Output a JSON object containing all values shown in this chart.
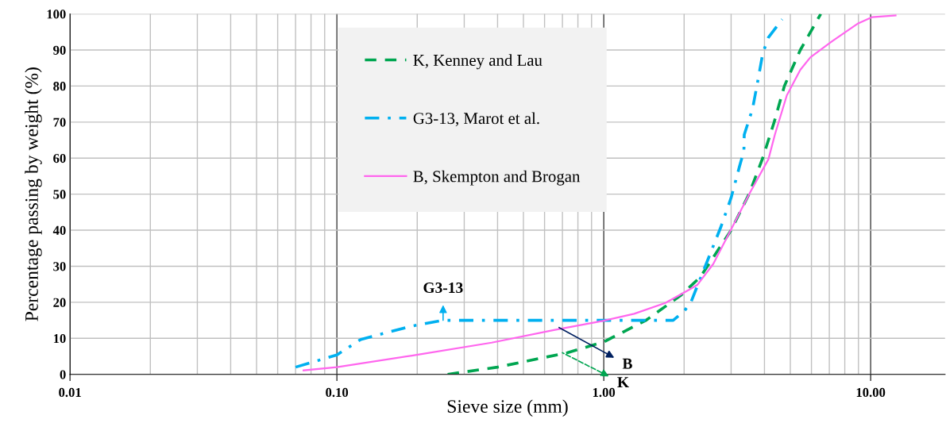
{
  "chart_data": {
    "type": "line",
    "xlabel": "Sieve size (mm)",
    "ylabel": "Percentage passing by weight (%)",
    "log": "x",
    "xlim": [
      0.01,
      19
    ],
    "ylim": [
      0,
      100
    ],
    "xticks": [
      {
        "value": 0.01,
        "label": "0.01"
      },
      {
        "value": 0.1,
        "label": "0.10"
      },
      {
        "value": 1,
        "label": "1.00"
      },
      {
        "value": 10,
        "label": "10.00"
      }
    ],
    "yticks": [
      0,
      10,
      20,
      30,
      40,
      50,
      60,
      70,
      80,
      90,
      100
    ],
    "grid": true,
    "legend": "top",
    "marker": "none",
    "series": [
      {
        "name": "K, Kenney and Lau",
        "color": "#00a651",
        "line_style": "dashed",
        "x": [
          0.26,
          0.4,
          0.73,
          1.0,
          1.44,
          1.95,
          2.3,
          3.0,
          3.5,
          3.94,
          4.35,
          4.75,
          5.45,
          6.5
        ],
        "values": [
          0,
          2,
          6,
          9,
          15,
          22,
          27,
          40,
          50,
          60,
          70,
          80,
          90,
          100
        ]
      },
      {
        "name": "G3-13, Marot et al.",
        "color": "#00b0f0",
        "line_style": "dashdot",
        "x": [
          0.07,
          0.1,
          0.123,
          0.191,
          0.25,
          0.6,
          1.0,
          1.82,
          2.0,
          2.12,
          2.4,
          2.75,
          3.0,
          3.22,
          3.35,
          3.36,
          3.61,
          3.79,
          3.94,
          4.14,
          4.66
        ],
        "values": [
          2,
          5.4,
          9.7,
          13.4,
          15,
          15,
          15,
          15,
          17.5,
          20,
          30,
          41,
          49,
          57.5,
          62,
          66.5,
          73.7,
          82,
          89,
          93.5,
          98.5
        ]
      },
      {
        "name": "B, Skempton and Brogan",
        "color": "#ff66ee",
        "line_style": "solid",
        "x": [
          0.075,
          0.1,
          0.191,
          0.38,
          0.65,
          1.0,
          1.3,
          1.7,
          2.09,
          2.24,
          2.57,
          2.99,
          3.54,
          4.14,
          4.38,
          4.85,
          5.45,
          5.95,
          7.16,
          8.98,
          10.1,
          12.4
        ],
        "values": [
          1.1,
          2,
          5.2,
          8.8,
          12.3,
          14.9,
          16.8,
          19.8,
          23.5,
          24.8,
          30.6,
          40,
          50.6,
          59.7,
          66.6,
          77.4,
          84.5,
          88,
          92.4,
          97.4,
          99.1,
          99.6
        ]
      }
    ],
    "annotations": [
      {
        "text": "G3-13",
        "x": 0.25,
        "y": 15
      },
      {
        "text": "B",
        "x": 0.68,
        "y": 13
      },
      {
        "text": "K",
        "x": 0.7,
        "y": 6
      }
    ]
  }
}
